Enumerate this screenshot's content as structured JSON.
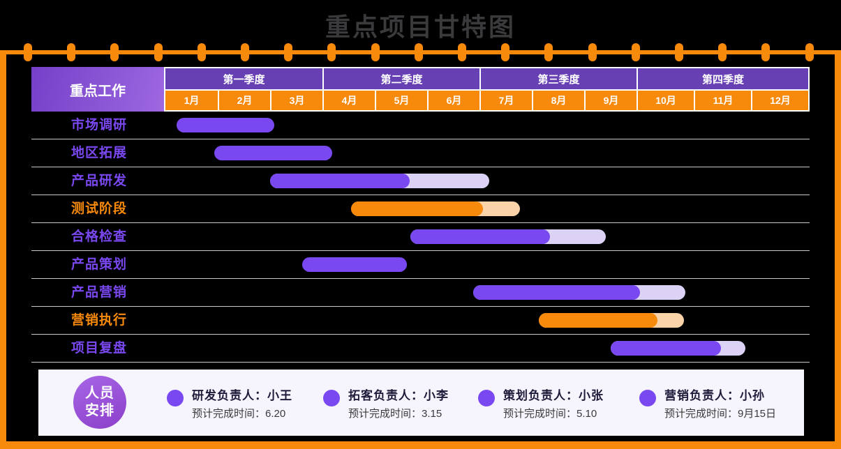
{
  "page": {
    "title": "重点项目甘特图"
  },
  "colors": {
    "accent_orange": "#F7890B",
    "accent_purple": "#7A48F0",
    "light_purple": "#DCD2F6",
    "light_orange": "#FAD3A8",
    "quarter_purple": "#6741B4",
    "header_gradient_start": "#7540C8",
    "header_gradient_end": "#9D68E0",
    "panel_bg": "#F6F5FD",
    "title_gray": "#3A3A3C"
  },
  "header": {
    "corner_label": "重点工作",
    "quarters": [
      "第一季度",
      "第二季度",
      "第三季度",
      "第四季度"
    ],
    "months": [
      "1月",
      "2月",
      "3月",
      "4月",
      "5月",
      "6月",
      "7月",
      "8月",
      "9月",
      "10月",
      "11月",
      "12月"
    ]
  },
  "chart_data": {
    "type": "bar",
    "variant": "gantt",
    "title": "重点项目甘特图",
    "x_axis": {
      "unit": "month",
      "range": [
        0,
        12
      ],
      "gridlines": false
    },
    "legend_position": "bottom",
    "tasks": [
      {
        "label": "市场调研",
        "color": "purple",
        "start_month": 0.2,
        "end_month": 2.1,
        "ext_end_month": null,
        "start_pct": 1.7,
        "solid_end_pct": 16.9,
        "light_end_pct": null
      },
      {
        "label": "地区拓展",
        "color": "purple",
        "start_month": 0.9,
        "end_month": 3.2,
        "ext_end_month": null,
        "start_pct": 7.6,
        "solid_end_pct": 25.9,
        "light_end_pct": null
      },
      {
        "label": "产品研发",
        "color": "purple",
        "start_month": 2.0,
        "end_month": 4.7,
        "ext_end_month": 6.2,
        "start_pct": 16.3,
        "solid_end_pct": 37.9,
        "light_end_pct": 50.3
      },
      {
        "label": "测试阶段",
        "color": "orange",
        "start_month": 3.5,
        "end_month": 6.1,
        "ext_end_month": 6.8,
        "start_pct": 28.8,
        "solid_end_pct": 49.3,
        "light_end_pct": 55.0
      },
      {
        "label": "合格检查",
        "color": "purple",
        "start_month": 4.7,
        "end_month": 7.3,
        "ext_end_month": 8.4,
        "start_pct": 38.0,
        "solid_end_pct": 59.7,
        "light_end_pct": 68.4
      },
      {
        "label": "产品策划",
        "color": "purple",
        "start_month": 2.6,
        "end_month": 4.6,
        "ext_end_month": null,
        "start_pct": 21.2,
        "solid_end_pct": 37.5,
        "light_end_pct": null
      },
      {
        "label": "产品营销",
        "color": "purple",
        "start_month": 5.9,
        "end_month": 9.1,
        "ext_end_month": 9.9,
        "start_pct": 47.8,
        "solid_end_pct": 73.7,
        "light_end_pct": 80.7
      },
      {
        "label": "营销执行",
        "color": "orange",
        "start_month": 7.1,
        "end_month": 9.4,
        "ext_end_month": 9.8,
        "start_pct": 58.0,
        "solid_end_pct": 76.4,
        "light_end_pct": 80.5
      },
      {
        "label": "项目复盘",
        "color": "purple",
        "start_month": 8.5,
        "end_month": 10.5,
        "ext_end_month": 10.9,
        "start_pct": 69.1,
        "solid_end_pct": 86.2,
        "light_end_pct": 90.0
      }
    ]
  },
  "legend": {
    "badge": {
      "line1": "人员",
      "line2": "安排"
    },
    "items": [
      {
        "role": "研发负责人：小王",
        "eta": "预计完成时间：6.20"
      },
      {
        "role": "拓客负责人：小李",
        "eta": "预计完成时间：3.15"
      },
      {
        "role": "策划负责人：小张",
        "eta": "预计完成时间：5.10"
      },
      {
        "role": "营销负责人：小孙",
        "eta": "预计完成时间：9月15日"
      }
    ]
  }
}
